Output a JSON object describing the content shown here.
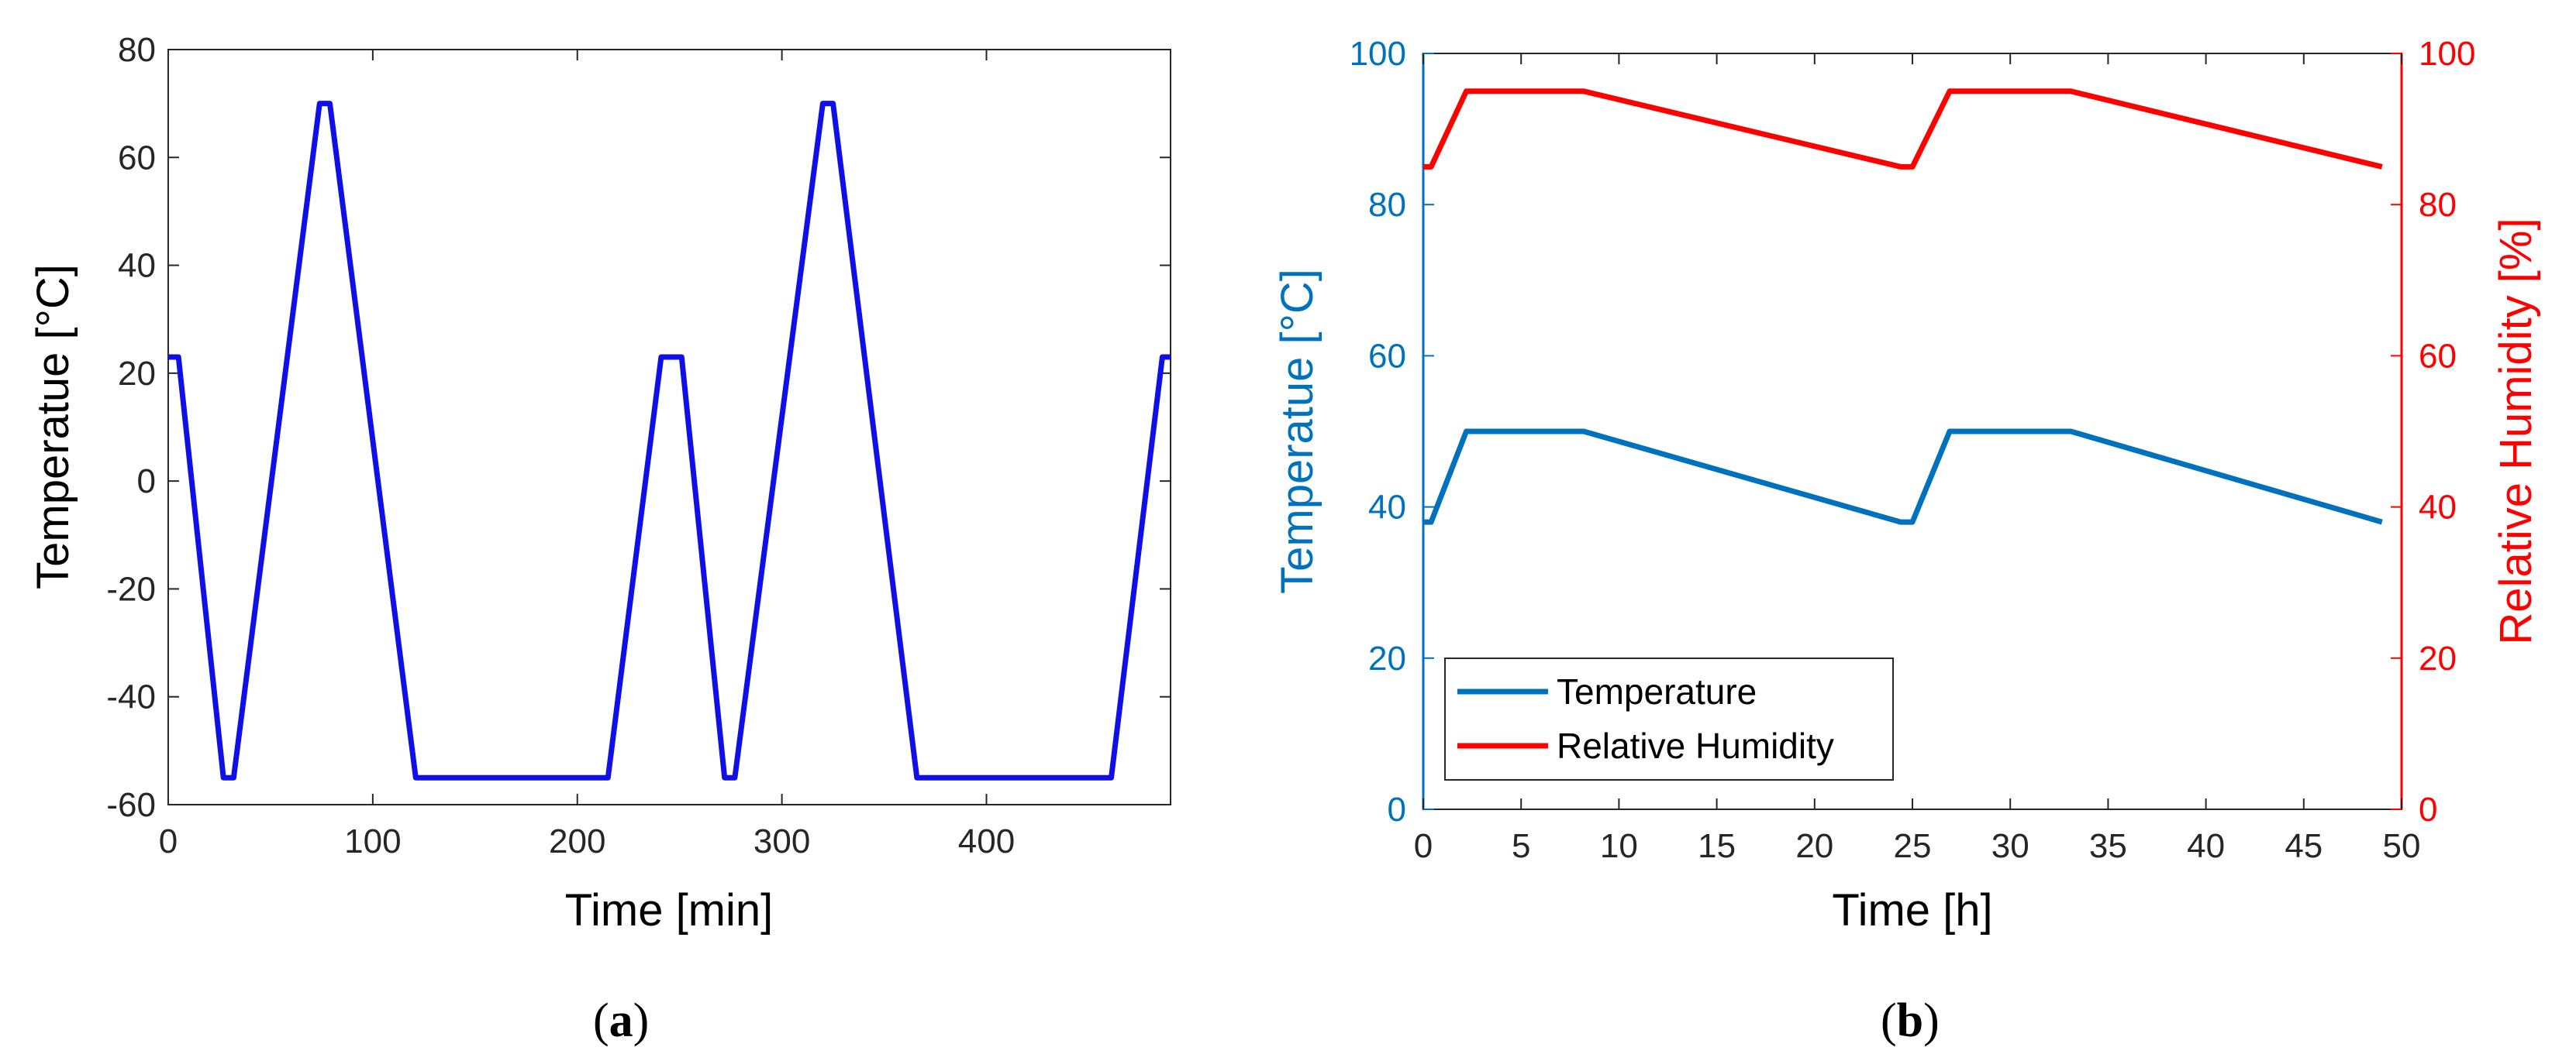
{
  "chart_data": [
    {
      "id": "a",
      "type": "line",
      "caption_letter": "a",
      "xlabel": "Time [min]",
      "ylabel": "Temperatue [°C]",
      "xlim": [
        0,
        490
      ],
      "ylim": [
        -60,
        80
      ],
      "xticks": [
        0,
        100,
        200,
        300,
        400
      ],
      "yticks": [
        -60,
        -40,
        -20,
        0,
        20,
        40,
        60,
        80
      ],
      "grid": false,
      "colors": {
        "line": "#1010e6",
        "axes": "#262626"
      },
      "series": [
        {
          "name": "Temperature",
          "x": [
            0,
            5,
            27,
            32,
            74,
            79,
            121,
            215,
            241,
            251,
            272,
            277,
            320,
            325,
            366,
            461,
            486,
            490
          ],
          "y": [
            23,
            23,
            -55,
            -55,
            70,
            70,
            -55,
            -55,
            23,
            23,
            -55,
            -55,
            70,
            70,
            -55,
            -55,
            23,
            23
          ]
        }
      ]
    },
    {
      "id": "b",
      "type": "line",
      "caption_letter": "b",
      "xlabel": "Time [h]",
      "ylabel_left": "Temperatue [°C]",
      "ylabel_right": "Relative Humidity [%]",
      "xlim": [
        0,
        50
      ],
      "ylim_left": [
        0,
        100
      ],
      "ylim_right": [
        0,
        100
      ],
      "xticks": [
        0,
        5,
        10,
        15,
        20,
        25,
        30,
        35,
        40,
        45,
        50
      ],
      "yticks_left": [
        0,
        20,
        40,
        60,
        80,
        100
      ],
      "yticks_right": [
        0,
        20,
        40,
        60,
        80,
        100
      ],
      "grid": false,
      "legend_position": "bottom-left",
      "colors": {
        "left_axis": "#0072bd",
        "right_axis": "#ff0000",
        "axes": "#262626"
      },
      "series": [
        {
          "name": "Temperature",
          "axis": "left",
          "color": "#0072bd",
          "x": [
            0,
            0.4,
            2.2,
            8.2,
            24.4,
            25.0,
            26.9,
            33.1,
            49.0
          ],
          "y": [
            38,
            38,
            50,
            50,
            38,
            38,
            50,
            50,
            38
          ]
        },
        {
          "name": "Relative Humidity",
          "axis": "right",
          "color": "#ff0000",
          "x": [
            0,
            0.4,
            2.2,
            8.2,
            24.4,
            25.0,
            26.9,
            33.1,
            49.0
          ],
          "y": [
            85,
            85,
            95,
            95,
            85,
            85,
            95,
            95,
            85
          ]
        }
      ]
    }
  ]
}
